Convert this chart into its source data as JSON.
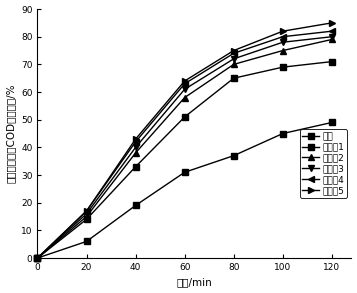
{
  "series": [
    {
      "label": "二维",
      "x": [
        0,
        20,
        40,
        60,
        80,
        100,
        120
      ],
      "y": [
        0,
        6,
        19,
        31,
        37,
        45,
        49
      ],
      "marker": "s",
      "markersize": 4,
      "linewidth": 1.0
    },
    {
      "label": "实施例1",
      "x": [
        0,
        20,
        40,
        60,
        80,
        100,
        120
      ],
      "y": [
        0,
        14,
        33,
        51,
        65,
        69,
        71
      ],
      "marker": "s",
      "markersize": 4,
      "linewidth": 1.0
    },
    {
      "label": "实施例2",
      "x": [
        0,
        20,
        40,
        60,
        80,
        100,
        120
      ],
      "y": [
        0,
        15,
        38,
        58,
        70,
        75,
        79
      ],
      "marker": "^",
      "markersize": 4,
      "linewidth": 1.0
    },
    {
      "label": "实施例3",
      "x": [
        0,
        20,
        40,
        60,
        80,
        100,
        120
      ],
      "y": [
        0,
        16,
        40,
        61,
        72,
        78,
        80
      ],
      "marker": "v",
      "markersize": 4,
      "linewidth": 1.0
    },
    {
      "label": "实施例4",
      "x": [
        0,
        20,
        40,
        60,
        80,
        100,
        120
      ],
      "y": [
        0,
        17,
        42,
        63,
        74,
        80,
        82
      ],
      "marker": "<",
      "markersize": 4,
      "linewidth": 1.0
    },
    {
      "label": "实施例5",
      "x": [
        0,
        20,
        40,
        60,
        80,
        100,
        120
      ],
      "y": [
        0,
        17,
        43,
        64,
        75,
        82,
        85
      ],
      "marker": ">",
      "markersize": 4,
      "linewidth": 1.0
    }
  ],
  "xlabel": "时间/min",
  "ylabel": "化学需氧量（COD）去除率/%",
  "xlim": [
    0,
    128
  ],
  "ylim": [
    0,
    90
  ],
  "xticks": [
    0,
    20,
    40,
    60,
    80,
    100,
    120
  ],
  "yticks": [
    0,
    10,
    20,
    30,
    40,
    50,
    60,
    70,
    80,
    90
  ],
  "color": "#000000",
  "legend_fontsize": 6.5,
  "axis_fontsize": 7.5,
  "tick_fontsize": 6.5,
  "figsize": [
    3.57,
    2.93
  ],
  "dpi": 100
}
